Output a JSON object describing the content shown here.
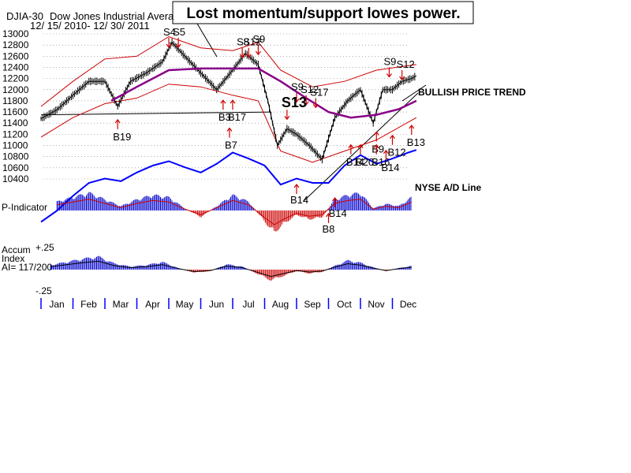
{
  "chart_data": {
    "type": "line",
    "title": "Lost momentum/support lowes power.",
    "header": {
      "index": "DJIA-30",
      "name": "Dow Jones Industrial Avera",
      "date_range": "12/ 15/ 2010- 12/ 30/ 2011"
    },
    "price_axis": {
      "ticks": [
        13000,
        12800,
        12600,
        12400,
        12200,
        12000,
        11800,
        11600,
        11400,
        11200,
        11000,
        10800,
        10600,
        10400
      ],
      "ylim": [
        10400,
        13000
      ]
    },
    "months": [
      "Jan",
      "Feb",
      "Mar",
      "Apr",
      "May",
      "Jun",
      "Jul",
      "Aug",
      "Sep",
      "Oct",
      "Nov",
      "Dec"
    ],
    "price_close": [
      {
        "m": 0.0,
        "v": 11480
      },
      {
        "m": 0.5,
        "v": 11640
      },
      {
        "m": 1.0,
        "v": 11900
      },
      {
        "m": 1.5,
        "v": 12150
      },
      {
        "m": 2.0,
        "v": 12150
      },
      {
        "m": 2.4,
        "v": 11700
      },
      {
        "m": 2.8,
        "v": 12150
      },
      {
        "m": 3.3,
        "v": 12300
      },
      {
        "m": 3.8,
        "v": 12500
      },
      {
        "m": 4.1,
        "v": 12850
      },
      {
        "m": 4.5,
        "v": 12600
      },
      {
        "m": 5.0,
        "v": 12300
      },
      {
        "m": 5.5,
        "v": 12000
      },
      {
        "m": 6.0,
        "v": 12350
      },
      {
        "m": 6.4,
        "v": 12650
      },
      {
        "m": 6.8,
        "v": 12450
      },
      {
        "m": 7.1,
        "v": 11800
      },
      {
        "m": 7.4,
        "v": 11000
      },
      {
        "m": 7.7,
        "v": 11300
      },
      {
        "m": 8.0,
        "v": 11200
      },
      {
        "m": 8.4,
        "v": 11000
      },
      {
        "m": 8.8,
        "v": 10750
      },
      {
        "m": 9.2,
        "v": 11500
      },
      {
        "m": 9.6,
        "v": 11800
      },
      {
        "m": 10.0,
        "v": 12000
      },
      {
        "m": 10.4,
        "v": 11400
      },
      {
        "m": 10.7,
        "v": 12000
      },
      {
        "m": 11.0,
        "v": 12000
      },
      {
        "m": 11.3,
        "v": 12150
      },
      {
        "m": 11.6,
        "v": 12200
      },
      {
        "m": 11.75,
        "v": 12250
      }
    ],
    "moving_average": [
      {
        "m": 2.2,
        "v": 11800
      },
      {
        "m": 3.0,
        "v": 12050
      },
      {
        "m": 4.0,
        "v": 12350
      },
      {
        "m": 5.0,
        "v": 12380
      },
      {
        "m": 6.0,
        "v": 12380
      },
      {
        "m": 6.8,
        "v": 12380
      },
      {
        "m": 7.5,
        "v": 12150
      },
      {
        "m": 8.3,
        "v": 11850
      },
      {
        "m": 9.0,
        "v": 11600
      },
      {
        "m": 9.7,
        "v": 11500
      },
      {
        "m": 10.5,
        "v": 11550
      },
      {
        "m": 11.2,
        "v": 11650
      },
      {
        "m": 11.75,
        "v": 11800
      }
    ],
    "upper_band": [
      {
        "m": 0.0,
        "v": 11700
      },
      {
        "m": 1.0,
        "v": 12150
      },
      {
        "m": 2.0,
        "v": 12550
      },
      {
        "m": 3.0,
        "v": 12600
      },
      {
        "m": 4.0,
        "v": 12950
      },
      {
        "m": 5.0,
        "v": 12750
      },
      {
        "m": 6.0,
        "v": 12700
      },
      {
        "m": 6.8,
        "v": 12850
      },
      {
        "m": 7.5,
        "v": 12350
      },
      {
        "m": 8.5,
        "v": 12050
      },
      {
        "m": 9.5,
        "v": 12150
      },
      {
        "m": 10.5,
        "v": 12350
      },
      {
        "m": 11.75,
        "v": 12450
      }
    ],
    "lower_band": [
      {
        "m": 0.0,
        "v": 11150
      },
      {
        "m": 1.0,
        "v": 11500
      },
      {
        "m": 2.0,
        "v": 11750
      },
      {
        "m": 3.0,
        "v": 11850
      },
      {
        "m": 4.0,
        "v": 12100
      },
      {
        "m": 5.0,
        "v": 12050
      },
      {
        "m": 6.0,
        "v": 11900
      },
      {
        "m": 6.8,
        "v": 11800
      },
      {
        "m": 7.5,
        "v": 10900
      },
      {
        "m": 8.5,
        "v": 10700
      },
      {
        "m": 9.5,
        "v": 10900
      },
      {
        "m": 10.5,
        "v": 11100
      },
      {
        "m": 11.75,
        "v": 11500
      }
    ],
    "support_line": {
      "from": {
        "m": 0.0,
        "v": 11550
      },
      "to": {
        "m": 7.2,
        "v": 11600
      }
    },
    "trendline_label": "BULLISH PRICE TREND",
    "nyse_ad_label": "NYSE A/D Line",
    "nyse_ad_line": [
      {
        "m": 0.0,
        "v": 0.05
      },
      {
        "m": 0.5,
        "v": 0.18
      },
      {
        "m": 1.0,
        "v": 0.35
      },
      {
        "m": 1.5,
        "v": 0.5
      },
      {
        "m": 2.0,
        "v": 0.55
      },
      {
        "m": 2.5,
        "v": 0.52
      },
      {
        "m": 3.0,
        "v": 0.62
      },
      {
        "m": 3.5,
        "v": 0.7
      },
      {
        "m": 4.0,
        "v": 0.75
      },
      {
        "m": 4.5,
        "v": 0.68
      },
      {
        "m": 5.0,
        "v": 0.62
      },
      {
        "m": 5.5,
        "v": 0.72
      },
      {
        "m": 6.0,
        "v": 0.85
      },
      {
        "m": 6.5,
        "v": 0.78
      },
      {
        "m": 7.0,
        "v": 0.7
      },
      {
        "m": 7.5,
        "v": 0.48
      },
      {
        "m": 8.0,
        "v": 0.55
      },
      {
        "m": 8.5,
        "v": 0.5
      },
      {
        "m": 9.0,
        "v": 0.5
      },
      {
        "m": 9.5,
        "v": 0.7
      },
      {
        "m": 10.0,
        "v": 0.82
      },
      {
        "m": 10.5,
        "v": 0.72
      },
      {
        "m": 11.0,
        "v": 0.78
      },
      {
        "m": 11.5,
        "v": 0.85
      },
      {
        "m": 11.75,
        "v": 0.88
      }
    ],
    "p_indicator_label": "P-Indicator",
    "p_indicator": [
      {
        "m": 0.5,
        "v": 0.4
      },
      {
        "m": 1.0,
        "v": 0.6
      },
      {
        "m": 1.5,
        "v": 0.8
      },
      {
        "m": 2.0,
        "v": 0.5
      },
      {
        "m": 2.5,
        "v": 0.2
      },
      {
        "m": 3.0,
        "v": 0.5
      },
      {
        "m": 3.5,
        "v": 0.7
      },
      {
        "m": 4.0,
        "v": 0.6
      },
      {
        "m": 4.5,
        "v": 0.1
      },
      {
        "m": 5.0,
        "v": -0.3
      },
      {
        "m": 5.5,
        "v": 0.2
      },
      {
        "m": 6.0,
        "v": 0.7
      },
      {
        "m": 6.5,
        "v": 0.4
      },
      {
        "m": 7.0,
        "v": -0.5
      },
      {
        "m": 7.3,
        "v": -1.0
      },
      {
        "m": 7.6,
        "v": -0.6
      },
      {
        "m": 8.0,
        "v": -0.2
      },
      {
        "m": 8.4,
        "v": -0.4
      },
      {
        "m": 8.8,
        "v": -0.3
      },
      {
        "m": 9.2,
        "v": 0.5
      },
      {
        "m": 9.6,
        "v": 0.7
      },
      {
        "m": 10.0,
        "v": 0.8
      },
      {
        "m": 10.4,
        "v": 0.1
      },
      {
        "m": 10.8,
        "v": 0.3
      },
      {
        "m": 11.2,
        "v": 0.2
      },
      {
        "m": 11.6,
        "v": 0.6
      }
    ],
    "accum": {
      "label_line1": "Accum",
      "label_line2": "Index",
      "label_line3": "AI= 117/200",
      "top_label": "+.25",
      "bottom_label": "-.25",
      "ylim": [
        -0.25,
        0.25
      ]
    },
    "accum_index": [
      {
        "m": 0.3,
        "v": 0.06
      },
      {
        "m": 0.8,
        "v": 0.1
      },
      {
        "m": 1.3,
        "v": 0.14
      },
      {
        "m": 1.8,
        "v": 0.17
      },
      {
        "m": 2.3,
        "v": 0.08
      },
      {
        "m": 2.8,
        "v": 0.04
      },
      {
        "m": 3.3,
        "v": 0.06
      },
      {
        "m": 3.8,
        "v": 0.1
      },
      {
        "m": 4.3,
        "v": 0.02
      },
      {
        "m": 4.8,
        "v": -0.04
      },
      {
        "m": 5.3,
        "v": -0.02
      },
      {
        "m": 5.8,
        "v": 0.07
      },
      {
        "m": 6.3,
        "v": 0.04
      },
      {
        "m": 6.8,
        "v": -0.06
      },
      {
        "m": 7.2,
        "v": -0.14
      },
      {
        "m": 7.6,
        "v": -0.08
      },
      {
        "m": 8.0,
        "v": -0.02
      },
      {
        "m": 8.4,
        "v": -0.05
      },
      {
        "m": 8.8,
        "v": -0.03
      },
      {
        "m": 9.2,
        "v": 0.05
      },
      {
        "m": 9.6,
        "v": 0.12
      },
      {
        "m": 10.0,
        "v": 0.09
      },
      {
        "m": 10.4,
        "v": 0.03
      },
      {
        "m": 10.8,
        "v": -0.02
      },
      {
        "m": 11.2,
        "v": 0.02
      },
      {
        "m": 11.6,
        "v": 0.05
      }
    ],
    "signals": [
      {
        "label": "S4",
        "m": 4.0,
        "v": 12930,
        "type": "sell"
      },
      {
        "label": "S5",
        "m": 4.3,
        "v": 12930,
        "type": "sell"
      },
      {
        "label": "S8",
        "m": 6.3,
        "v": 12750,
        "type": "sell"
      },
      {
        "label": "S9",
        "m": 6.8,
        "v": 12800,
        "type": "sell"
      },
      {
        "label": "S12",
        "m": 6.5,
        "v": 12750,
        "type": "sell"
      },
      {
        "label": "S9",
        "m": 8.0,
        "v": 11950,
        "type": "sell"
      },
      {
        "label": "S12",
        "m": 8.3,
        "v": 11900,
        "type": "sell"
      },
      {
        "label": "S17",
        "m": 8.6,
        "v": 11850,
        "type": "sell"
      },
      {
        "label": "S13",
        "m": 7.7,
        "v": 11640,
        "type": "sell",
        "big": true
      },
      {
        "label": "S9",
        "m": 10.9,
        "v": 12400,
        "type": "sell"
      },
      {
        "label": "S12",
        "m": 11.3,
        "v": 12350,
        "type": "sell"
      },
      {
        "label": "B19",
        "m": 2.4,
        "v": 11150,
        "type": "buy"
      },
      {
        "label": "B3",
        "m": 5.7,
        "v": 11500,
        "type": "buy"
      },
      {
        "label": "B17",
        "m": 6.0,
        "v": 11500,
        "type": "buy"
      },
      {
        "label": "B7",
        "m": 5.9,
        "v": 11000,
        "type": "buy"
      },
      {
        "label": "B13",
        "m": 11.6,
        "v": 11050,
        "type": "buy"
      },
      {
        "label": "B9",
        "m": 10.5,
        "v": 10930,
        "type": "buy"
      },
      {
        "label": "B12",
        "m": 11.0,
        "v": 10870,
        "type": "buy"
      },
      {
        "label": "B14",
        "m": 9.7,
        "v": 10700,
        "type": "buy"
      },
      {
        "label": "B20",
        "m": 10.0,
        "v": 10700,
        "type": "buy"
      },
      {
        "label": "B16",
        "m": 10.5,
        "v": 10700,
        "type": "buy"
      },
      {
        "label": "B14",
        "m": 10.8,
        "v": 10600,
        "type": "buy"
      }
    ],
    "signals_low": [
      {
        "label": "B14",
        "m": 8.0,
        "y": 258
      },
      {
        "label": "B14",
        "m": 9.2,
        "y": 275
      },
      {
        "label": "B8",
        "m": 9.0,
        "y": 295
      }
    ]
  }
}
